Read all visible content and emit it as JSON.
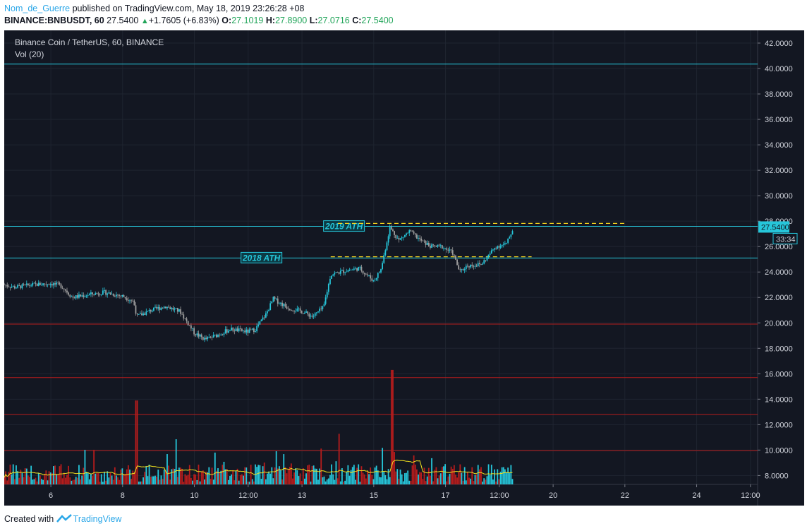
{
  "header": {
    "author": "Nom_de_Guerre",
    "published_text": "published on TradingView.com, May 18, 2019 23:26:28 +08",
    "symbol_line": "BINANCE:BNBUSDT, 60",
    "last": "27.5400",
    "change_arrow": "▲",
    "change": "+1.7605 (+6.83%)",
    "o_label": "O:",
    "o_value": "27.1019",
    "h_label": "H:",
    "h_value": "27.8900",
    "l_label": "L:",
    "l_value": "27.0716",
    "c_label": "C:",
    "c_value": "27.5400"
  },
  "footer": {
    "created_with": "Created with",
    "brand": "TradingView"
  },
  "chart_data": {
    "type": "candlestick",
    "title": "Binance Coin / TetherUS, 60, BINANCE",
    "indicator": "Vol (20)",
    "ylim": [
      7.3,
      43.0
    ],
    "y_ticks": [
      "42.0000",
      "40.0000",
      "38.0000",
      "36.0000",
      "34.0000",
      "32.0000",
      "30.0000",
      "28.0000",
      "26.0000",
      "24.0000",
      "22.0000",
      "20.0000",
      "18.0000",
      "16.0000",
      "14.0000",
      "12.0000",
      "10.0000",
      "8.0000"
    ],
    "x_ticks": [
      {
        "label": "6",
        "day": 6.0
      },
      {
        "label": "8",
        "day": 8.0
      },
      {
        "label": "10",
        "day": 10.0
      },
      {
        "label": "12:00",
        "day": 11.5
      },
      {
        "label": "13",
        "day": 13.0
      },
      {
        "label": "15",
        "day": 15.0
      },
      {
        "label": "17",
        "day": 17.0
      },
      {
        "label": "12:00",
        "day": 18.5
      },
      {
        "label": "20",
        "day": 20.0
      },
      {
        "label": "22",
        "day": 22.0
      },
      {
        "label": "24",
        "day": 24.0
      },
      {
        "label": "12:00",
        "day": 25.5
      }
    ],
    "x_domain_days": [
      4.7,
      25.7
    ],
    "price_path": [
      [
        4.7,
        23.0
      ],
      [
        5.0,
        22.8
      ],
      [
        5.5,
        23.0
      ],
      [
        6.0,
        23.1
      ],
      [
        6.3,
        22.9
      ],
      [
        6.6,
        22.0
      ],
      [
        7.0,
        22.2
      ],
      [
        7.5,
        22.4
      ],
      [
        8.0,
        22.1
      ],
      [
        8.3,
        21.7
      ],
      [
        8.4,
        20.5
      ],
      [
        8.8,
        21.0
      ],
      [
        9.2,
        21.3
      ],
      [
        9.6,
        20.9
      ],
      [
        10.0,
        19.2
      ],
      [
        10.3,
        18.7
      ],
      [
        10.6,
        19.0
      ],
      [
        11.0,
        19.5
      ],
      [
        11.5,
        19.3
      ],
      [
        11.7,
        19.5
      ],
      [
        12.0,
        20.7
      ],
      [
        12.2,
        21.9
      ],
      [
        12.6,
        21.2
      ],
      [
        13.0,
        20.9
      ],
      [
        13.3,
        20.5
      ],
      [
        13.6,
        21.2
      ],
      [
        13.8,
        23.8
      ],
      [
        14.2,
        24.1
      ],
      [
        14.6,
        24.3
      ],
      [
        15.0,
        23.3
      ],
      [
        15.2,
        24.2
      ],
      [
        15.45,
        27.5
      ],
      [
        15.7,
        26.5
      ],
      [
        16.0,
        27.2
      ],
      [
        16.3,
        26.5
      ],
      [
        16.6,
        26.0
      ],
      [
        16.9,
        26.0
      ],
      [
        17.2,
        25.5
      ],
      [
        17.4,
        24.0
      ],
      [
        17.6,
        24.5
      ],
      [
        18.0,
        24.6
      ],
      [
        18.4,
        26.0
      ],
      [
        18.7,
        26.2
      ],
      [
        18.9,
        27.54
      ]
    ],
    "volume_baseline_level": 7.3,
    "horizontal_lines": [
      {
        "label": "",
        "y": 40.35,
        "color": "#26c6da"
      },
      {
        "label": "2019 ATH",
        "y": 27.59,
        "color": "#26c6da",
        "label_day": 13.6
      },
      {
        "label": "2018 ATH",
        "y": 25.1,
        "color": "#26c6da",
        "label_day": 11.3
      },
      {
        "label": "",
        "y": 19.9,
        "color": "#b71c1c"
      },
      {
        "label": "",
        "y": 15.7,
        "color": "#b71c1c"
      },
      {
        "label": "",
        "y": 12.8,
        "color": "#b71c1c"
      },
      {
        "label": "",
        "y": 9.95,
        "color": "#b71c1c"
      }
    ],
    "dashed_lines": [
      {
        "y": 27.82,
        "from_day": 14.0,
        "to_day": 22.0,
        "color": "#f5d31e"
      },
      {
        "y": 25.2,
        "from_day": 13.8,
        "to_day": 19.4,
        "color": "#f5d31e"
      }
    ],
    "price_label": "27.5400",
    "countdown_label": "33:34",
    "colors": {
      "background": "#131722",
      "up": "#26c6da",
      "down": "#9e9e9e",
      "vol_up": "#26c6da",
      "vol_down": "#b71c1c",
      "vol_ma": "#f5e51e",
      "grid": "#1f2430",
      "axis_text": "#d1d4dc"
    }
  }
}
